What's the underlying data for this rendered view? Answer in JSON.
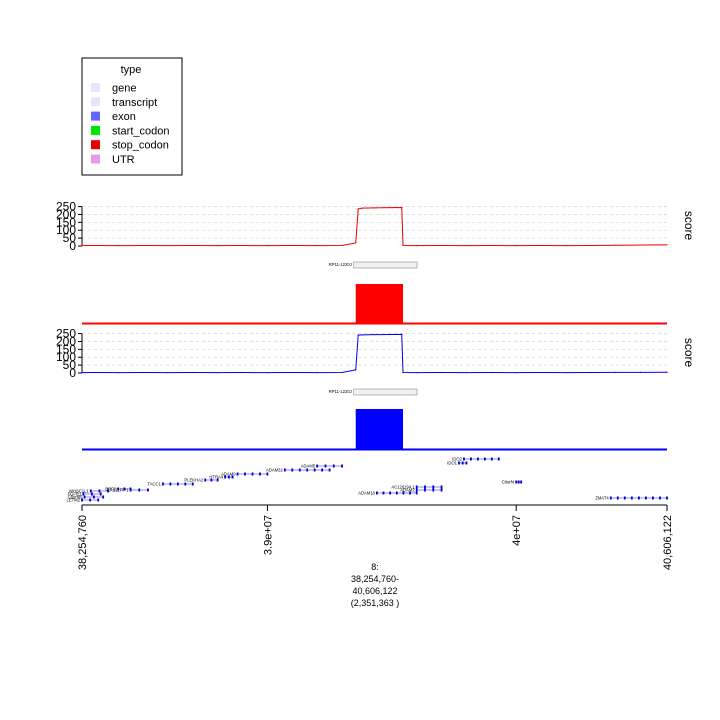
{
  "legend": {
    "title": "type",
    "items": [
      {
        "label": "gene",
        "color": "#E6E6FA"
      },
      {
        "label": "transcript",
        "color": "#E6E6FA"
      },
      {
        "label": "exon",
        "color": "#6666FF"
      },
      {
        "label": "start_codon",
        "color": "#00E600"
      },
      {
        "label": "stop_codon",
        "color": "#E60000"
      },
      {
        "label": "UTR",
        "color": "#E59BE5"
      }
    ]
  },
  "chart_data": [
    {
      "type": "line",
      "track": "score-red",
      "ylabel": "score",
      "color": "#E60000",
      "yticks": [
        0,
        50,
        100,
        150,
        200,
        250
      ],
      "ylim": [
        0,
        260
      ],
      "x": [
        38254760,
        38300000,
        38400000,
        38500000,
        38600000,
        38700000,
        38800000,
        38900000,
        39000000,
        39100000,
        39200000,
        39300000,
        39355000,
        39365000,
        39380000,
        39430000,
        39500000,
        39540000,
        39545000,
        39600000,
        39700000,
        39800000,
        39900000,
        40000000,
        40100000,
        40200000,
        40300000,
        40400000,
        40500000,
        40606122
      ],
      "values": [
        2,
        3,
        2,
        3,
        2,
        3,
        2,
        3,
        2,
        3,
        2,
        3,
        20,
        235,
        240,
        242,
        243,
        244,
        3,
        2,
        3,
        2,
        3,
        2,
        3,
        2,
        3,
        5,
        6,
        7
      ]
    },
    {
      "type": "line",
      "track": "score-blue",
      "ylabel": "score",
      "color": "#0000E6",
      "yticks": [
        0,
        50,
        100,
        150,
        200,
        250
      ],
      "ylim": [
        0,
        260
      ],
      "x": [
        38254760,
        38300000,
        38400000,
        38500000,
        38600000,
        38700000,
        38800000,
        38900000,
        39000000,
        39100000,
        39200000,
        39300000,
        39355000,
        39365000,
        39380000,
        39430000,
        39500000,
        39540000,
        39545000,
        39600000,
        39700000,
        39800000,
        39900000,
        40000000,
        40100000,
        40200000,
        40300000,
        40400000,
        40500000,
        40606122
      ],
      "values": [
        2,
        3,
        2,
        3,
        2,
        3,
        2,
        3,
        2,
        3,
        2,
        3,
        20,
        240,
        242,
        243,
        244,
        245,
        3,
        2,
        3,
        2,
        3,
        2,
        3,
        2,
        3,
        4,
        4,
        5
      ]
    }
  ],
  "coverage_red": {
    "label": "RP11-1220J",
    "color": "#FF0000",
    "block_start": 39355000,
    "block_end": 39545000
  },
  "coverage_blue": {
    "label": "RP11-1220J",
    "color": "#0000FF",
    "block_start": 39355000,
    "block_end": 39545000
  },
  "genes": [
    {
      "name": "FGFR1",
      "start": 38260000,
      "end": 38330000,
      "row": 0
    },
    {
      "name": "C8orf86",
      "start": 38265000,
      "end": 38340000,
      "row": 1
    },
    {
      "name": "LETM2",
      "start": 38254760,
      "end": 38320000,
      "row": 2
    },
    {
      "name": "WHSC1L1",
      "start": 38290000,
      "end": 38360000,
      "row": 3
    },
    {
      "name": "BRF2",
      "start": 38400000,
      "end": 38450000,
      "row": 4
    },
    {
      "name": "RAB11FIP1",
      "start": 38450000,
      "end": 38520000,
      "row": 5
    },
    {
      "name": "TACC1",
      "start": 38580000,
      "end": 38700000,
      "row": 6
    },
    {
      "name": "PLEKHA2",
      "start": 38750000,
      "end": 38800000,
      "row": 7
    },
    {
      "name": "HTRA4",
      "start": 38830000,
      "end": 38860000,
      "row": 8
    },
    {
      "name": "ADAM9",
      "start": 38880000,
      "end": 39000000,
      "row": 9
    },
    {
      "name": "ADAM32",
      "start": 39070000,
      "end": 39250000,
      "row": 10
    },
    {
      "name": "ADAM5",
      "start": 39200000,
      "end": 39300000,
      "row": 11
    },
    {
      "name": "ADAM18",
      "start": 39440000,
      "end": 39600000,
      "row": 12
    },
    {
      "name": "AC120194.1",
      "start": 39600000,
      "end": 39700000,
      "row": 13
    },
    {
      "name": "ADAM2",
      "start": 39600000,
      "end": 39700000,
      "row": 14
    },
    {
      "name": "IDO1",
      "start": 39770000,
      "end": 39800000,
      "row": 15
    },
    {
      "name": "IDO2",
      "start": 39790000,
      "end": 39930000,
      "row": 16
    },
    {
      "name": "C8orf4",
      "start": 40000000,
      "end": 40020000,
      "row": 17
    },
    {
      "name": "ZMAT4",
      "start": 40380000,
      "end": 40606122,
      "row": 18
    }
  ],
  "x_axis": {
    "xlim": [
      38254760,
      40606122
    ],
    "ticks": [
      {
        "value": 38254760,
        "label": "38,254,760"
      },
      {
        "value": 39000000,
        "label": "3.9e+07"
      },
      {
        "value": 40000000,
        "label": "4e+07"
      },
      {
        "value": 40606122,
        "label": "40,606,122"
      }
    ],
    "chrom_label": "8:",
    "range_label": "38,254,760-",
    "range_end_label": "40,606,122",
    "width_label": "(2,351,363 )"
  }
}
